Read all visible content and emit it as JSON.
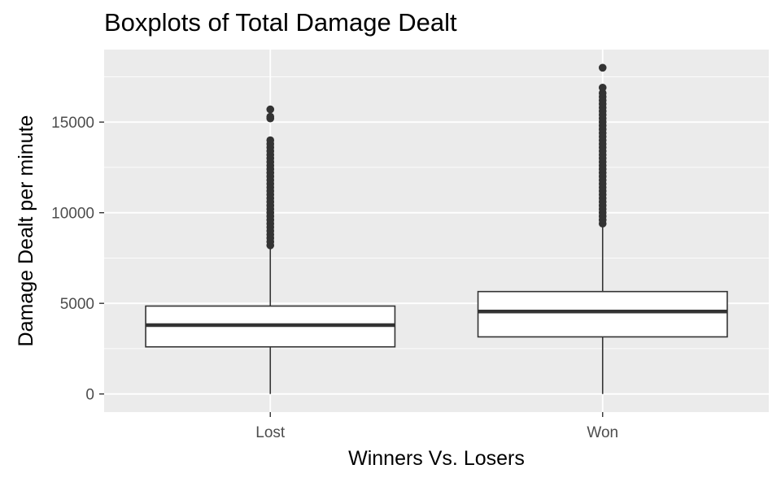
{
  "chart_data": {
    "type": "boxplot",
    "title": "Boxplots of Total Damage Dealt",
    "xlabel": "Winners Vs. Losers",
    "ylabel": "Damage Dealt per minute",
    "categories": [
      "Lost",
      "Won"
    ],
    "ylim": [
      -1000,
      19000
    ],
    "yticks": [
      0,
      5000,
      10000,
      15000
    ],
    "ytick_labels": [
      "0",
      "5000",
      "10000",
      "15000"
    ],
    "grid": true,
    "background": "#ebebeb",
    "grid_color": "#ffffff",
    "box_fill": "#ffffff",
    "box_stroke": "#333333",
    "outlier_color": "#333333",
    "boxes": [
      {
        "category": "Lost",
        "whisker_low": 0,
        "q1": 2600,
        "median": 3800,
        "q3": 4850,
        "whisker_high": 8200,
        "outliers": [
          8200,
          8400,
          8600,
          8800,
          9000,
          9200,
          9400,
          9600,
          9800,
          10000,
          10200,
          10400,
          10600,
          10800,
          11000,
          11200,
          11400,
          11600,
          11800,
          12000,
          12200,
          12400,
          12600,
          12800,
          13000,
          13200,
          13400,
          13600,
          13800,
          14000,
          15200,
          15300,
          15700
        ]
      },
      {
        "category": "Won",
        "whisker_low": 0,
        "q1": 3150,
        "median": 4550,
        "q3": 5650,
        "whisker_high": 9400,
        "outliers": [
          9400,
          9600,
          9800,
          10000,
          10200,
          10400,
          10600,
          10800,
          11000,
          11200,
          11400,
          11600,
          11800,
          12000,
          12200,
          12400,
          12600,
          12800,
          13000,
          13200,
          13400,
          13600,
          13800,
          14000,
          14200,
          14400,
          14600,
          14800,
          15000,
          15200,
          15400,
          15600,
          15800,
          16000,
          16200,
          16400,
          16600,
          16900,
          18000
        ]
      }
    ]
  }
}
